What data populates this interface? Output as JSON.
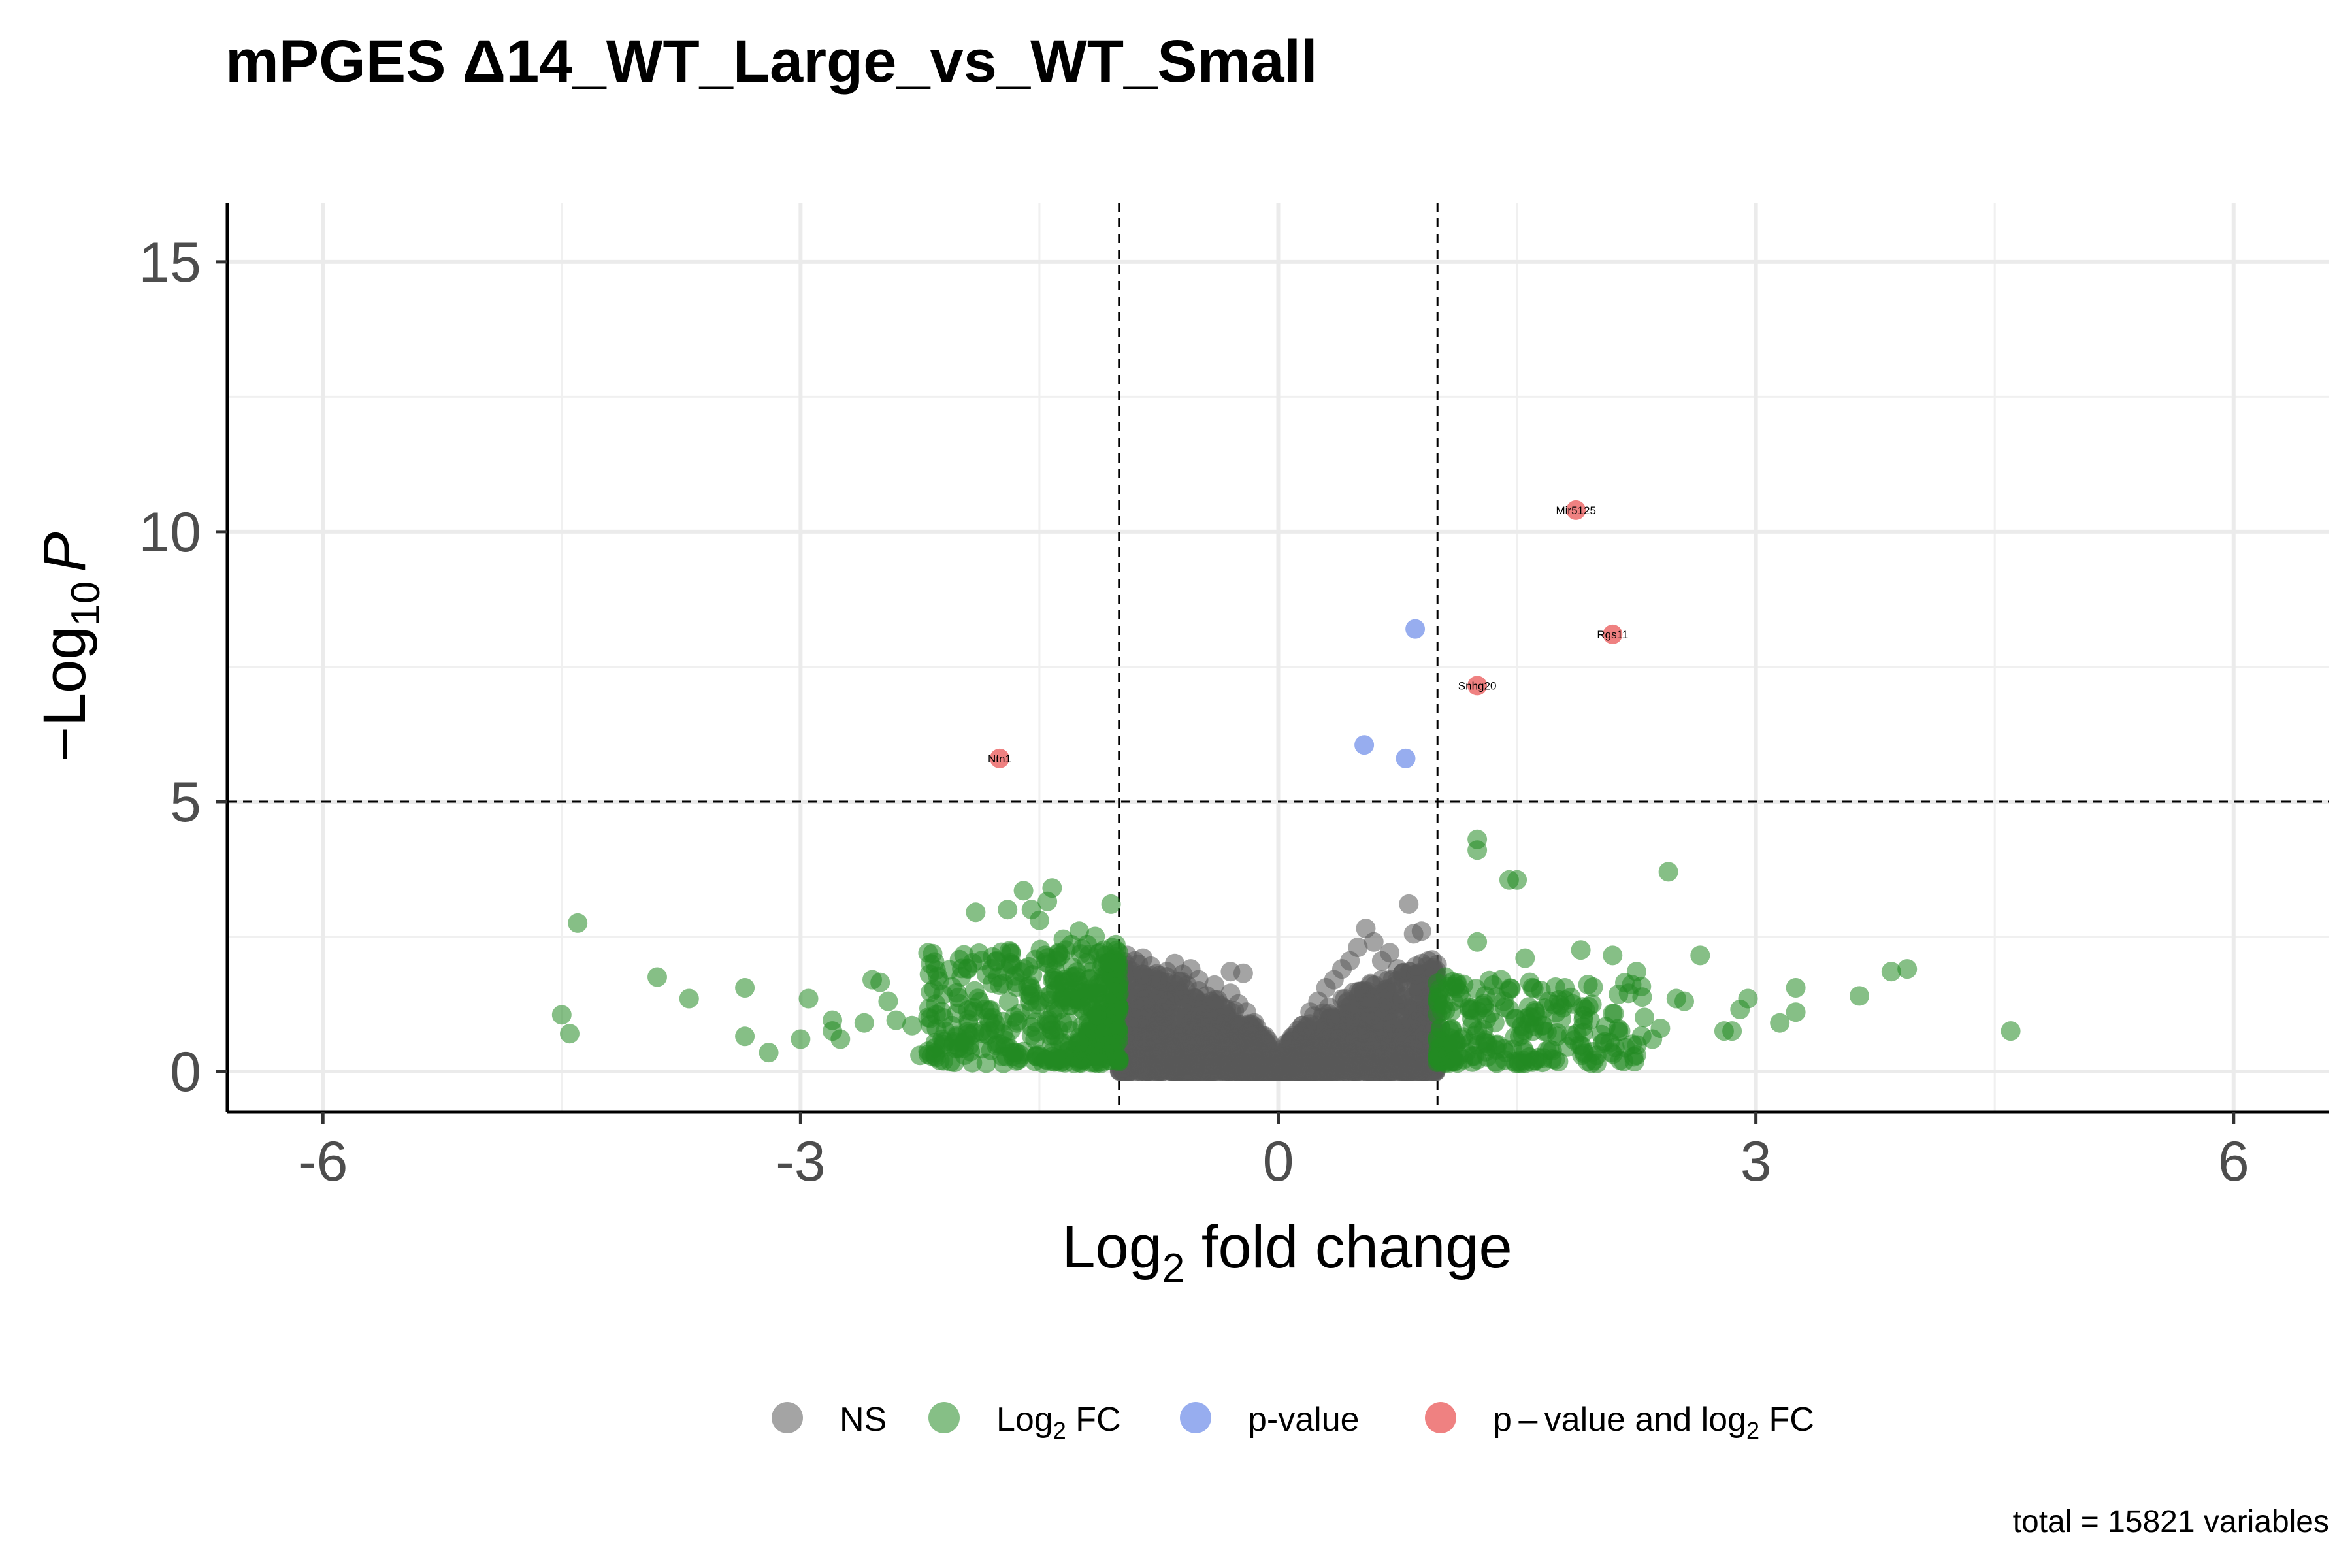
{
  "chart_data": {
    "type": "scatter",
    "title": "mPGES Δ14_WT_Large_vs_WT_Small",
    "xlabel": {
      "base": "Log",
      "sub": "2",
      "rest": " fold change"
    },
    "ylabel": {
      "prefix": "−Log",
      "sub": "10",
      "italic": "P"
    },
    "xlim": [
      -6.6,
      6.6
    ],
    "ylim": [
      -0.75,
      16.1
    ],
    "xticks": [
      -6,
      -3,
      0,
      3,
      6
    ],
    "xtick_labels": [
      "-6",
      "-3",
      "0",
      "3",
      "6"
    ],
    "yticks": [
      0,
      5,
      10,
      15
    ],
    "ytick_labels": [
      "0",
      "5",
      "10",
      "15"
    ],
    "cutoffs": {
      "log2fc": 1,
      "pvalue_log10": 5
    },
    "grid": true,
    "legend_position": "bottom",
    "caption": "total = 15821 variables",
    "legend": [
      {
        "key": "NS",
        "color": "#5a5a5a",
        "parts": [
          {
            "t": "NS"
          }
        ]
      },
      {
        "key": "Log2FC",
        "color": "#228b22",
        "parts": [
          {
            "t": "Log"
          },
          {
            "t": "2",
            "sub": true
          },
          {
            "t": " FC"
          }
        ]
      },
      {
        "key": "pvalue",
        "color": "#4169e1",
        "parts": [
          {
            "t": "p-value"
          }
        ]
      },
      {
        "key": "both",
        "color": "#e11a1a",
        "parts": [
          {
            "t": "p – value and log"
          },
          {
            "t": "2",
            "sub": true
          },
          {
            "t": " FC"
          }
        ]
      }
    ],
    "series": [
      {
        "name": "NS",
        "color": "#5a5a5a",
        "points": [
          [
            0.82,
            3.1
          ],
          [
            0.85,
            2.55
          ],
          [
            0.55,
            2.65
          ],
          [
            0.6,
            2.4
          ],
          [
            0.7,
            2.2
          ],
          [
            0.5,
            2.3
          ],
          [
            0.45,
            2.05
          ],
          [
            0.9,
            2.6
          ],
          [
            0.95,
            1.4
          ],
          [
            0.88,
            1.5
          ],
          [
            0.75,
            1.9
          ],
          [
            0.65,
            2.05
          ],
          [
            0.4,
            1.9
          ],
          [
            0.35,
            1.7
          ],
          [
            0.3,
            1.55
          ],
          [
            0.25,
            1.3
          ],
          [
            0.2,
            1.1
          ],
          [
            0.15,
            0.85
          ],
          [
            -0.15,
            0.9
          ],
          [
            -0.2,
            1.1
          ],
          [
            -0.3,
            1.45
          ],
          [
            -0.4,
            1.6
          ],
          [
            -0.5,
            1.7
          ],
          [
            -0.6,
            1.8
          ],
          [
            -0.7,
            1.85
          ],
          [
            -0.8,
            1.95
          ],
          [
            -0.9,
            2.05
          ],
          [
            -0.95,
            2.15
          ],
          [
            -0.85,
            2.1
          ],
          [
            -0.65,
            2.0
          ],
          [
            -0.3,
            1.85
          ],
          [
            -0.22,
            1.82
          ],
          [
            -0.55,
            1.9
          ],
          [
            -0.45,
            1.4
          ],
          [
            -0.25,
            1.25
          ]
        ],
        "cloud": {
          "xmin": -1,
          "xmax": 1,
          "ymax": 2.0,
          "count": 2200
        }
      },
      {
        "name": "Log2FC",
        "color": "#228b22",
        "points": [
          [
            -4.5,
            1.05
          ],
          [
            -4.45,
            0.7
          ],
          [
            -4.4,
            2.75
          ],
          [
            -3.9,
            1.75
          ],
          [
            -3.7,
            1.35
          ],
          [
            -3.35,
            1.55
          ],
          [
            -3.35,
            0.65
          ],
          [
            -3.2,
            0.35
          ],
          [
            -3.0,
            0.6
          ],
          [
            -2.95,
            1.35
          ],
          [
            -2.8,
            0.95
          ],
          [
            -2.8,
            0.75
          ],
          [
            -2.75,
            0.6
          ],
          [
            -2.6,
            0.9
          ],
          [
            -2.55,
            1.7
          ],
          [
            -2.5,
            1.65
          ],
          [
            -2.45,
            1.3
          ],
          [
            -2.4,
            0.95
          ],
          [
            -2.3,
            0.85
          ],
          [
            -2.25,
            0.3
          ],
          [
            -2.2,
            1.0
          ],
          [
            -2.1,
            0.55
          ],
          [
            -2.05,
            0.85
          ],
          [
            -2.0,
            1.25
          ],
          [
            -1.95,
            1.9
          ],
          [
            -1.9,
            2.95
          ],
          [
            -1.85,
            0.7
          ],
          [
            -1.8,
            1.9
          ],
          [
            -1.75,
            1.6
          ],
          [
            -1.7,
            3.0
          ],
          [
            -1.65,
            1.65
          ],
          [
            -1.6,
            3.35
          ],
          [
            -1.55,
            3.0
          ],
          [
            -1.5,
            2.8
          ],
          [
            -1.5,
            1.3
          ],
          [
            -1.45,
            3.15
          ],
          [
            -1.42,
            3.4
          ],
          [
            -1.38,
            2.2
          ],
          [
            -1.35,
            2.45
          ],
          [
            -1.3,
            2.35
          ],
          [
            -1.3,
            1.75
          ],
          [
            -1.25,
            2.6
          ],
          [
            -1.2,
            2.35
          ],
          [
            -1.15,
            2.5
          ],
          [
            -1.12,
            2.2
          ],
          [
            -1.1,
            2.0
          ],
          [
            -1.05,
            3.1
          ],
          [
            -1.02,
            2.35
          ],
          [
            1.05,
            1.75
          ],
          [
            1.1,
            1.3
          ],
          [
            1.15,
            0.6
          ],
          [
            1.25,
            4.3
          ],
          [
            1.25,
            4.1
          ],
          [
            1.25,
            2.4
          ],
          [
            1.3,
            1.4
          ],
          [
            1.35,
            1.6
          ],
          [
            1.4,
            1.7
          ],
          [
            1.45,
            3.55
          ],
          [
            1.5,
            3.55
          ],
          [
            1.55,
            2.1
          ],
          [
            1.6,
            0.75
          ],
          [
            1.65,
            1.5
          ],
          [
            1.7,
            1.3
          ],
          [
            1.75,
            0.65
          ],
          [
            1.8,
            1.55
          ],
          [
            1.85,
            1.25
          ],
          [
            1.9,
            2.25
          ],
          [
            1.95,
            1.2
          ],
          [
            2.0,
            0.3
          ],
          [
            2.05,
            0.55
          ],
          [
            2.1,
            2.15
          ],
          [
            2.15,
            0.75
          ],
          [
            2.2,
            1.45
          ],
          [
            2.25,
            1.85
          ],
          [
            2.3,
            1.0
          ],
          [
            2.35,
            0.6
          ],
          [
            2.4,
            0.8
          ],
          [
            2.45,
            3.7
          ],
          [
            2.5,
            1.35
          ],
          [
            2.55,
            1.3
          ],
          [
            2.65,
            2.15
          ],
          [
            2.8,
            0.75
          ],
          [
            2.85,
            0.75
          ],
          [
            2.9,
            1.15
          ],
          [
            2.95,
            1.35
          ],
          [
            3.15,
            0.9
          ],
          [
            3.25,
            1.55
          ],
          [
            3.25,
            1.1
          ],
          [
            3.65,
            1.4
          ],
          [
            3.85,
            1.85
          ],
          [
            3.95,
            1.9
          ],
          [
            4.6,
            0.75
          ],
          [
            1.55,
            0.35
          ],
          [
            2.0,
            0.15
          ]
        ],
        "clouds": [
          {
            "xmin": -2.2,
            "xmax": -1,
            "ymin": 0.15,
            "ymax": 2.3,
            "count": 420
          },
          {
            "xmin": 1,
            "xmax": 2.3,
            "ymin": 0.15,
            "ymax": 1.7,
            "count": 220
          }
        ]
      },
      {
        "name": "p-value",
        "color": "#4169e1",
        "points": [
          [
            0.86,
            8.2
          ],
          [
            0.54,
            6.05
          ],
          [
            0.8,
            5.8
          ]
        ]
      },
      {
        "name": "p-value and log2 FC",
        "color": "#e11a1a",
        "points": [
          [
            1.87,
            10.4
          ],
          [
            2.1,
            8.1
          ],
          [
            1.25,
            7.15
          ],
          [
            -1.75,
            5.8
          ]
        ],
        "labels": [
          "Mir5125",
          "Rgs11",
          "Snhg20",
          "Ntn1"
        ]
      }
    ]
  }
}
